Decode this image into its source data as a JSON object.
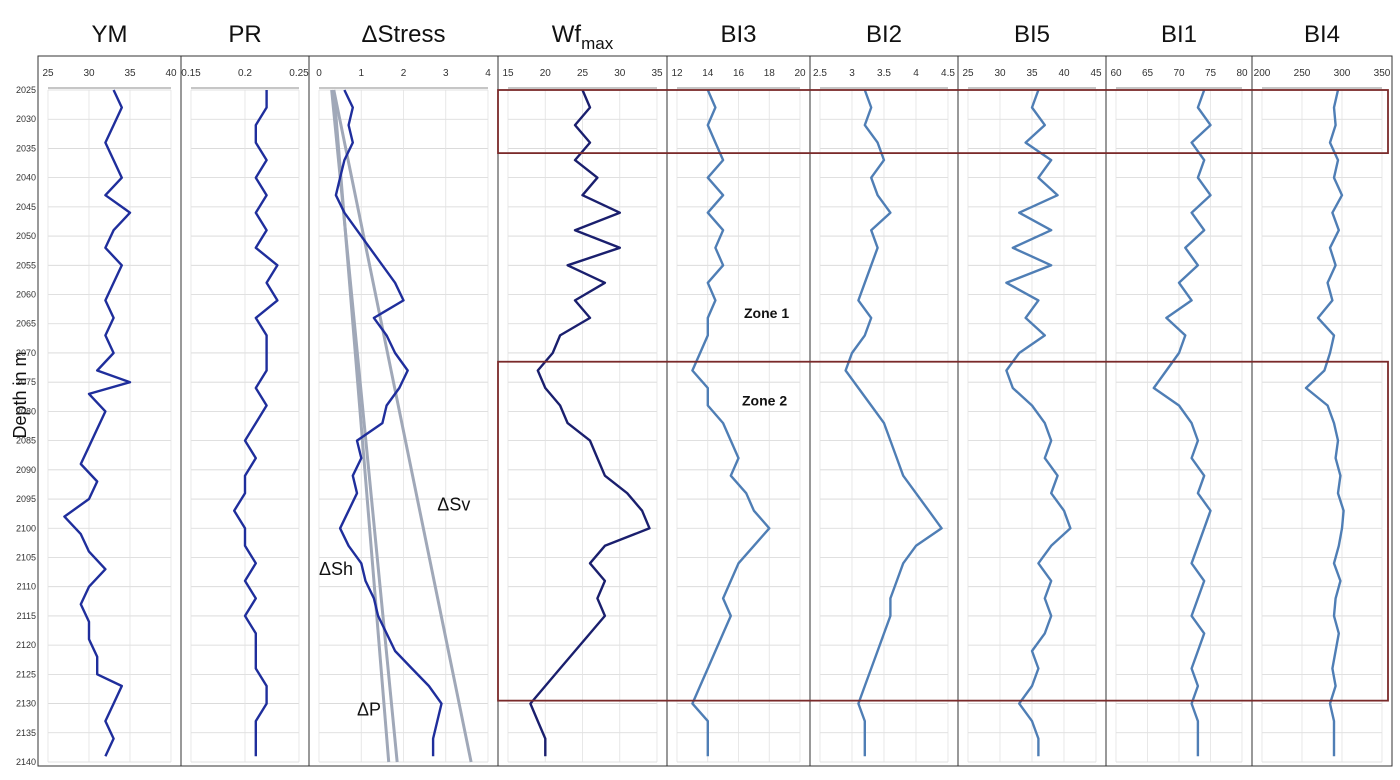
{
  "chart_data": {
    "type": "line",
    "ylabel": "Depth in m",
    "ylim": [
      2025,
      2140
    ],
    "depth_ticks": [
      2025,
      2030,
      2035,
      2040,
      2045,
      2050,
      2055,
      2060,
      2065,
      2070,
      2075,
      2080,
      2085,
      2090,
      2095,
      2100,
      2105,
      2110,
      2115,
      2120,
      2125,
      2130,
      2135,
      2140
    ],
    "depth_grid_step": 5,
    "colors": {
      "series": "#1f2e9c",
      "dark_series": "#1a1f6e",
      "light_series": "#4f7eb5",
      "reference": "#a0a8b8",
      "zone": "#7a2a2a"
    },
    "zones": [
      {
        "label": "Zone 1",
        "top": 2025,
        "bottom": 2035.8
      },
      {
        "label": "Zone 2",
        "top": 2071.5,
        "bottom": 2129.5
      }
    ],
    "zone_labels": [
      "Zone 1",
      "Zone 2"
    ],
    "tracks": [
      {
        "title": "YM",
        "xlim": [
          25,
          40
        ],
        "ticks": [
          "25",
          "30",
          "35",
          "40"
        ],
        "depths": [
          2025,
          2028,
          2031,
          2034,
          2037,
          2040,
          2043,
          2046,
          2049,
          2052,
          2055,
          2058,
          2061,
          2064,
          2067,
          2070,
          2073,
          2075,
          2077,
          2080,
          2083,
          2086,
          2089,
          2092,
          2095,
          2098,
          2101,
          2104,
          2107,
          2110,
          2113,
          2116,
          2119,
          2122,
          2125,
          2127,
          2130,
          2133,
          2136,
          2139
        ],
        "values": [
          33,
          34,
          33,
          32,
          33,
          34,
          32,
          35,
          33,
          32,
          34,
          33,
          32,
          33,
          32,
          33,
          31,
          35,
          30,
          32,
          31,
          30,
          29,
          31,
          30,
          27,
          29,
          30,
          32,
          30,
          29,
          30,
          30,
          31,
          31,
          34,
          33,
          32,
          33,
          32
        ]
      },
      {
        "title": "PR",
        "xlim": [
          0.15,
          0.25
        ],
        "ticks": [
          "0.15",
          "0.2",
          "0.25"
        ],
        "depths": [
          2025,
          2028,
          2031,
          2034,
          2037,
          2040,
          2043,
          2046,
          2049,
          2052,
          2055,
          2058,
          2061,
          2064,
          2067,
          2070,
          2073,
          2076,
          2079,
          2082,
          2085,
          2088,
          2091,
          2094,
          2097,
          2100,
          2103,
          2106,
          2109,
          2112,
          2115,
          2118,
          2121,
          2124,
          2127,
          2130,
          2133,
          2136,
          2139
        ],
        "values": [
          0.22,
          0.22,
          0.21,
          0.21,
          0.22,
          0.21,
          0.22,
          0.21,
          0.22,
          0.21,
          0.23,
          0.22,
          0.23,
          0.21,
          0.22,
          0.22,
          0.22,
          0.21,
          0.22,
          0.21,
          0.2,
          0.21,
          0.2,
          0.2,
          0.19,
          0.2,
          0.2,
          0.21,
          0.2,
          0.21,
          0.2,
          0.21,
          0.21,
          0.21,
          0.22,
          0.22,
          0.21,
          0.21,
          0.21
        ]
      },
      {
        "title": "ΔStress",
        "xlim": [
          0,
          4
        ],
        "ticks": [
          "0",
          "1",
          "2",
          "3",
          "4"
        ],
        "depths": [
          2025,
          2028,
          2031,
          2034,
          2037,
          2040,
          2043,
          2046,
          2049,
          2052,
          2055,
          2058,
          2061,
          2064,
          2067,
          2070,
          2073,
          2076,
          2079,
          2082,
          2085,
          2088,
          2091,
          2094,
          2097,
          2100,
          2103,
          2106,
          2109,
          2112,
          2115,
          2118,
          2121,
          2124,
          2127,
          2130,
          2133,
          2136,
          2139
        ],
        "values": [
          0.6,
          0.8,
          0.7,
          0.8,
          0.6,
          0.5,
          0.4,
          0.6,
          0.9,
          1.2,
          1.5,
          1.8,
          2.0,
          1.3,
          1.6,
          1.8,
          2.1,
          1.9,
          1.6,
          1.5,
          0.9,
          1.0,
          0.8,
          0.9,
          0.7,
          0.5,
          0.7,
          1.0,
          1.1,
          1.3,
          1.4,
          1.6,
          1.8,
          2.2,
          2.6,
          2.9,
          2.8,
          2.7,
          2.7
        ],
        "annotations": [
          "ΔSv",
          "ΔSh",
          "ΔP"
        ],
        "reference_lines": [
          {
            "name": "ΔSv",
            "points": [
              [
                0.35,
                2025
              ],
              [
                3.6,
                2140
              ]
            ]
          },
          {
            "name": "ΔSh",
            "points": [
              [
                0.35,
                2025
              ],
              [
                1.65,
                2140
              ]
            ]
          },
          {
            "name": "ΔP",
            "points": [
              [
                0.3,
                2025
              ],
              [
                1.85,
                2140
              ]
            ]
          }
        ]
      },
      {
        "title": "Wf",
        "title_sub": "max",
        "xlim": [
          15,
          35
        ],
        "ticks": [
          "15",
          "20",
          "25",
          "30",
          "35"
        ],
        "depths": [
          2025,
          2028,
          2031,
          2034,
          2037,
          2040,
          2043,
          2046,
          2049,
          2052,
          2055,
          2058,
          2061,
          2064,
          2067,
          2070,
          2073,
          2076,
          2079,
          2082,
          2085,
          2088,
          2091,
          2094,
          2097,
          2100,
          2103,
          2106,
          2109,
          2112,
          2115,
          2118,
          2121,
          2124,
          2127,
          2130,
          2133,
          2136,
          2139
        ],
        "values": [
          25,
          26,
          24,
          26,
          24,
          27,
          25,
          30,
          24,
          30,
          23,
          28,
          24,
          26,
          22,
          21,
          19,
          20,
          22,
          23,
          26,
          27,
          28,
          31,
          33,
          34,
          28,
          26,
          28,
          27,
          28,
          26,
          24,
          22,
          20,
          18,
          19,
          20,
          20
        ]
      },
      {
        "title": "BI3",
        "xlim": [
          12,
          20
        ],
        "ticks": [
          "12",
          "14",
          "16",
          "18",
          "20"
        ],
        "depths": [
          2025,
          2028,
          2031,
          2034,
          2037,
          2040,
          2043,
          2046,
          2049,
          2052,
          2055,
          2058,
          2061,
          2064,
          2067,
          2070,
          2073,
          2076,
          2079,
          2082,
          2085,
          2088,
          2091,
          2094,
          2097,
          2100,
          2103,
          2106,
          2109,
          2112,
          2115,
          2118,
          2121,
          2124,
          2127,
          2130,
          2133,
          2136,
          2139
        ],
        "values": [
          14,
          14.5,
          14,
          14.5,
          15,
          14,
          15,
          14,
          15,
          14.5,
          15,
          14,
          14.5,
          14,
          14,
          13.5,
          13,
          14,
          14,
          15,
          15.5,
          16,
          15.5,
          16.5,
          17,
          18,
          17,
          16,
          15.5,
          15,
          15.5,
          15,
          14.5,
          14,
          13.5,
          13,
          14,
          14,
          14
        ]
      },
      {
        "title": "BI2",
        "xlim": [
          2.5,
          4.5
        ],
        "ticks": [
          "2.5",
          "3",
          "3.5",
          "4",
          "4.5"
        ],
        "depths": [
          2025,
          2028,
          2031,
          2034,
          2037,
          2040,
          2043,
          2046,
          2049,
          2052,
          2055,
          2058,
          2061,
          2064,
          2067,
          2070,
          2073,
          2076,
          2079,
          2082,
          2085,
          2088,
          2091,
          2094,
          2097,
          2100,
          2103,
          2106,
          2109,
          2112,
          2115,
          2118,
          2121,
          2124,
          2127,
          2130,
          2133,
          2136,
          2139
        ],
        "values": [
          3.2,
          3.3,
          3.2,
          3.4,
          3.5,
          3.3,
          3.4,
          3.6,
          3.3,
          3.4,
          3.3,
          3.2,
          3.1,
          3.3,
          3.2,
          3.0,
          2.9,
          3.1,
          3.3,
          3.5,
          3.6,
          3.7,
          3.8,
          4.0,
          4.2,
          4.4,
          4.0,
          3.8,
          3.7,
          3.6,
          3.6,
          3.5,
          3.4,
          3.3,
          3.2,
          3.1,
          3.2,
          3.2,
          3.2
        ]
      },
      {
        "title": "BI5",
        "xlim": [
          25,
          45
        ],
        "ticks": [
          "25",
          "30",
          "35",
          "40",
          "45"
        ],
        "depths": [
          2025,
          2028,
          2031,
          2034,
          2037,
          2040,
          2043,
          2046,
          2049,
          2052,
          2055,
          2058,
          2061,
          2064,
          2067,
          2070,
          2073,
          2076,
          2079,
          2082,
          2085,
          2088,
          2091,
          2094,
          2097,
          2100,
          2103,
          2106,
          2109,
          2112,
          2115,
          2118,
          2121,
          2124,
          2127,
          2130,
          2133,
          2136,
          2139
        ],
        "values": [
          36,
          35,
          37,
          34,
          38,
          36,
          39,
          33,
          38,
          32,
          38,
          31,
          36,
          34,
          37,
          33,
          31,
          32,
          35,
          37,
          38,
          37,
          39,
          38,
          40,
          41,
          38,
          36,
          38,
          37,
          38,
          37,
          35,
          36,
          35,
          33,
          35,
          36,
          36
        ]
      },
      {
        "title": "BI1",
        "xlim": [
          60,
          80
        ],
        "ticks": [
          "60",
          "65",
          "70",
          "75",
          "80"
        ],
        "depths": [
          2025,
          2028,
          2031,
          2034,
          2037,
          2040,
          2043,
          2046,
          2049,
          2052,
          2055,
          2058,
          2061,
          2064,
          2067,
          2070,
          2073,
          2076,
          2079,
          2082,
          2085,
          2088,
          2091,
          2094,
          2097,
          2100,
          2103,
          2106,
          2109,
          2112,
          2115,
          2118,
          2121,
          2124,
          2127,
          2130,
          2133,
          2136,
          2139
        ],
        "values": [
          74,
          73,
          75,
          72,
          74,
          73,
          75,
          72,
          74,
          71,
          73,
          70,
          72,
          68,
          71,
          70,
          68,
          66,
          70,
          72,
          73,
          72,
          74,
          73,
          75,
          74,
          73,
          72,
          74,
          73,
          72,
          74,
          73,
          72,
          73,
          72,
          73,
          73,
          73
        ]
      },
      {
        "title": "BI4",
        "xlim": [
          200,
          350
        ],
        "ticks": [
          "200",
          "250",
          "300",
          "350"
        ],
        "depths": [
          2025,
          2028,
          2031,
          2034,
          2037,
          2040,
          2043,
          2046,
          2049,
          2052,
          2055,
          2058,
          2061,
          2064,
          2067,
          2070,
          2073,
          2076,
          2079,
          2082,
          2085,
          2088,
          2091,
          2094,
          2097,
          2100,
          2103,
          2106,
          2109,
          2112,
          2115,
          2118,
          2121,
          2124,
          2127,
          2130,
          2133,
          2136,
          2139
        ],
        "values": [
          295,
          290,
          292,
          285,
          295,
          290,
          300,
          288,
          296,
          285,
          292,
          282,
          288,
          270,
          290,
          285,
          278,
          255,
          282,
          290,
          295,
          292,
          298,
          295,
          302,
          300,
          296,
          290,
          298,
          292,
          290,
          296,
          292,
          288,
          292,
          285,
          290,
          290,
          290
        ]
      }
    ]
  }
}
